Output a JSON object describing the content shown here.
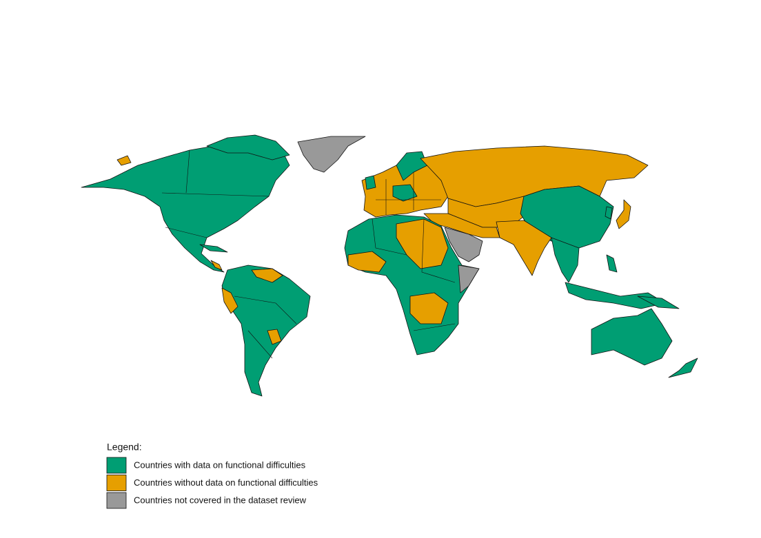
{
  "legend": {
    "title": "Legend:",
    "items": [
      {
        "label": "Countries with data on functional difficulties",
        "color": "#009E73"
      },
      {
        "label": "Countries without data on functional difficulties",
        "color": "#E69F00"
      },
      {
        "label": "Countries not covered in the dataset review",
        "color": "#999999"
      }
    ]
  }
}
